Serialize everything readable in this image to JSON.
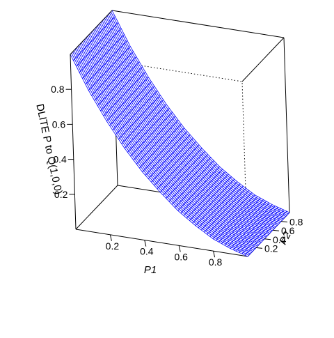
{
  "chart_data": {
    "type": "surface3d",
    "zlabel": "DLITE P to Q(1,0,0)",
    "xlabel": "P1",
    "ylabel": "P2",
    "xlim": [
      0,
      1
    ],
    "ylim": [
      0,
      1
    ],
    "zlim": [
      0,
      1
    ],
    "x_ticks": [
      "0.2",
      "0.4",
      "0.6",
      "0.8"
    ],
    "y_ticks": [
      "0.2",
      "0.4",
      "0.6",
      "0.8"
    ],
    "z_ticks": [
      "0.2",
      "0.4",
      "0.6",
      "0.8"
    ],
    "surface_color": "#0000ff",
    "box": true,
    "grid": false,
    "surface_samples": [
      {
        "p1": 0.0,
        "z": 1.0
      },
      {
        "p1": 0.1,
        "z": 0.81
      },
      {
        "p1": 0.2,
        "z": 0.65
      },
      {
        "p1": 0.3,
        "z": 0.51
      },
      {
        "p1": 0.4,
        "z": 0.39
      },
      {
        "p1": 0.5,
        "z": 0.29
      },
      {
        "p1": 0.6,
        "z": 0.2
      },
      {
        "p1": 0.7,
        "z": 0.13
      },
      {
        "p1": 0.8,
        "z": 0.07
      },
      {
        "p1": 0.9,
        "z": 0.03
      },
      {
        "p1": 1.0,
        "z": 0.0
      }
    ]
  }
}
